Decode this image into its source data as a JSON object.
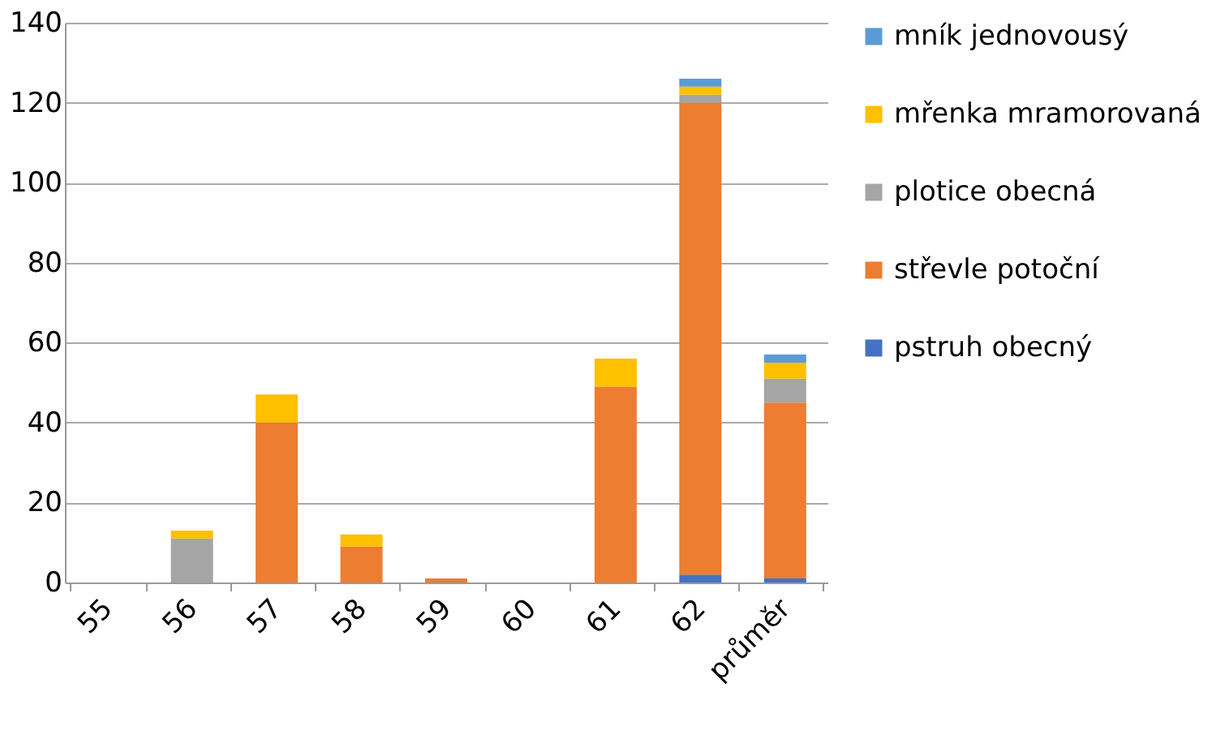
{
  "chart_data": {
    "type": "bar",
    "stacked": true,
    "categories": [
      "55",
      "56",
      "57",
      "58",
      "59",
      "60",
      "61",
      "62",
      "průměr"
    ],
    "series": [
      {
        "name": "pstruh obecný",
        "color": "#4472c4",
        "values": [
          null,
          null,
          null,
          null,
          null,
          null,
          null,
          2,
          1
        ]
      },
      {
        "name": "střevle potoční",
        "color": "#ed7d31",
        "values": [
          null,
          null,
          40,
          9,
          1,
          null,
          49,
          118,
          44
        ]
      },
      {
        "name": "plotice obecná",
        "color": "#a5a5a5",
        "values": [
          null,
          11,
          null,
          null,
          null,
          null,
          null,
          2,
          6
        ]
      },
      {
        "name": "mřenka mramorovaná",
        "color": "#ffc000",
        "values": [
          null,
          2,
          7,
          3,
          null,
          null,
          7,
          2,
          4
        ]
      },
      {
        "name": "mník jednovousý",
        "color": "#5b9bd5",
        "values": [
          null,
          null,
          null,
          null,
          null,
          null,
          null,
          2,
          2
        ]
      }
    ],
    "ylim": [
      0,
      140
    ],
    "yticks": [
      0,
      20,
      40,
      60,
      80,
      100,
      120,
      140
    ],
    "grid": "y",
    "legend": "right"
  }
}
